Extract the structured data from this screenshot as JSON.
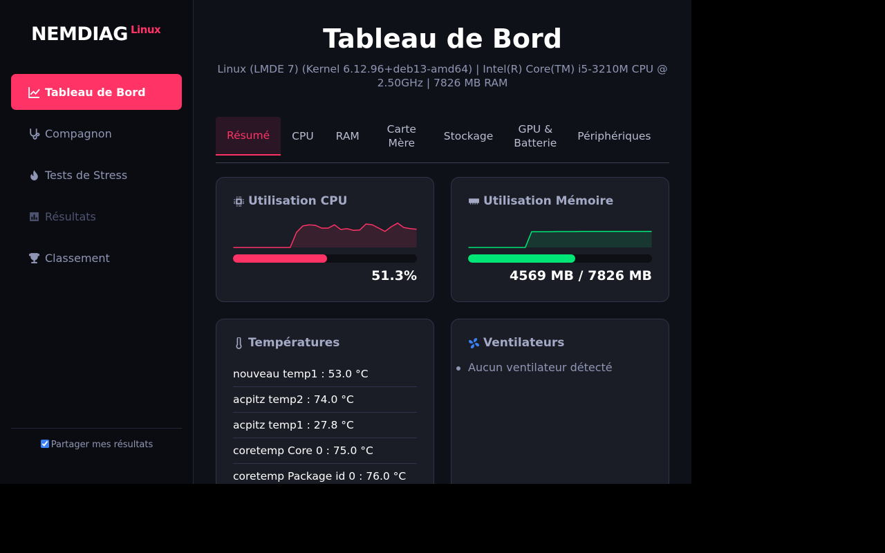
{
  "sidebar": {
    "brand": "NEMDIAG",
    "brand_tag": "Linux",
    "nav": [
      "Tableau de Bord",
      "Compagnon",
      "Tests de Stress",
      "Résultats",
      "Classement"
    ],
    "share": "Partager mes résultats"
  },
  "header": {
    "title": "Tableau de Bord",
    "subtitle": "Linux (LMDE 7) (Kernel 6.12.96+deb13-amd64) | Intel(R) Core(TM) i5-3210M CPU @ 2.50GHz | 7826 MB RAM"
  },
  "tabs": [
    "Résumé",
    "CPU",
    "RAM",
    "Carte Mère",
    "Stockage",
    "GPU & Batterie",
    "Périphériques"
  ],
  "cards": {
    "cpu": {
      "title": "Utilisation CPU",
      "color": "#ff3366",
      "ylim": [
        0,
        100
      ],
      "history": [
        0,
        0,
        0,
        0,
        0,
        0,
        0,
        0,
        0,
        0,
        55,
        78,
        82,
        80,
        70,
        70,
        82,
        65,
        68,
        62,
        63,
        85,
        82,
        70,
        58,
        75,
        88,
        72,
        68,
        66
      ],
      "usage": {
        "value": 51.3,
        "label": "51.3%"
      }
    },
    "memory": {
      "title": "Utilisation Mémoire",
      "color": "#00e676",
      "ylim": [
        0,
        100
      ],
      "history": [
        0,
        0,
        0,
        0,
        0,
        0,
        0,
        0,
        0,
        0,
        57,
        57,
        57,
        57,
        57.5,
        57.5,
        57.5,
        57.5,
        58,
        58,
        58,
        58,
        58,
        58,
        58,
        58,
        58,
        58,
        58,
        58
      ],
      "usage": {
        "used": 4569,
        "total": 7826,
        "label": "4569 MB / 7826 MB"
      }
    },
    "temperatures": {
      "title": "Températures",
      "items": [
        "nouveau temp1 : 53.0 °C",
        "acpitz temp2 : 74.0 °C",
        "acpitz temp1 : 27.8 °C",
        "coretemp Core 0 : 75.0 °C",
        "coretemp Package id 0 : 76.0 °C"
      ]
    },
    "fans": {
      "title": "Ventilateurs",
      "items": [
        "Aucun ventilateur détecté"
      ]
    }
  }
}
